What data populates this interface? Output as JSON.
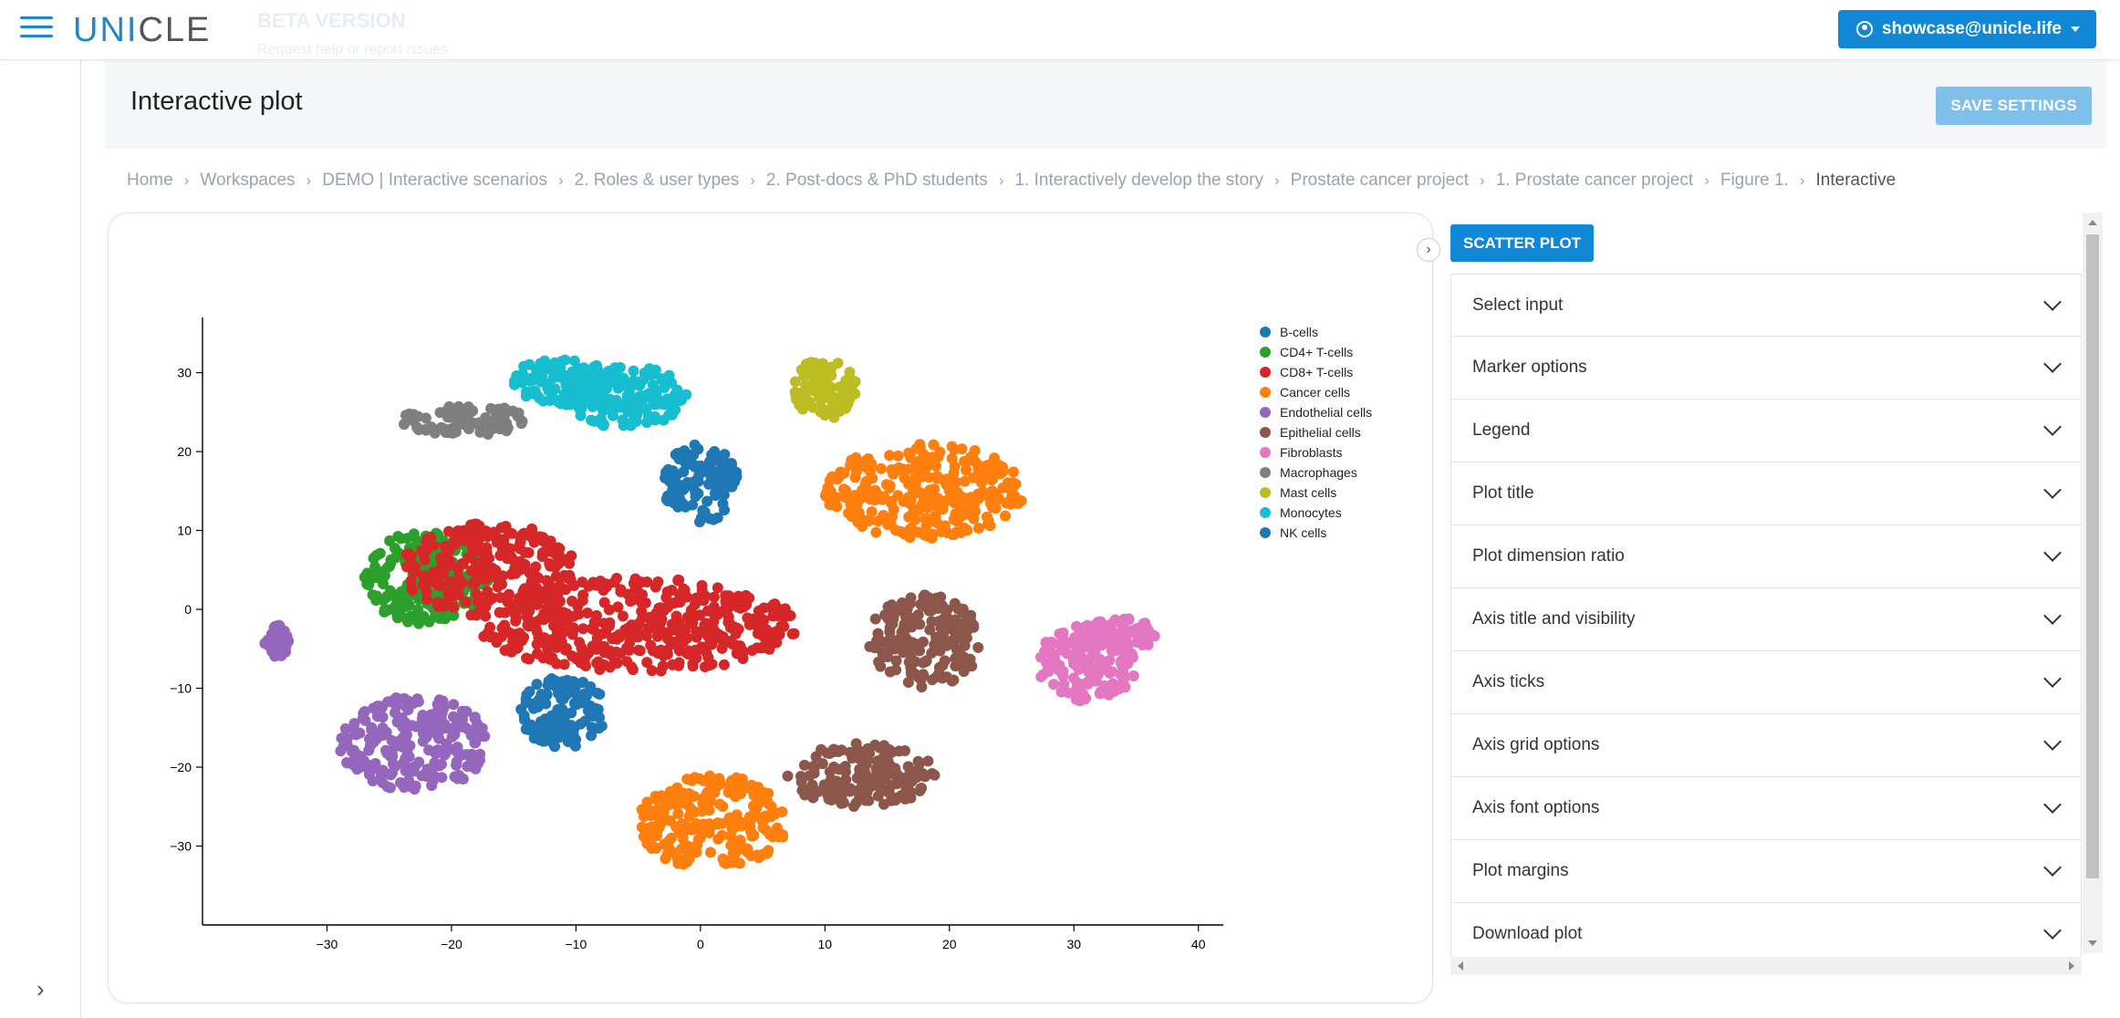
{
  "header": {
    "logo_primary": "UNI",
    "logo_secondary": "CLE",
    "beta_title": "BETA VERSION",
    "beta_subtitle": "Request help or report issues",
    "user_label": "showcase@unicle.life",
    "icons": {
      "menu": "hamburger-icon",
      "user": "user-circle-icon",
      "caret": "caret-down-icon"
    }
  },
  "page": {
    "title": "Interactive plot",
    "save_label": "SAVE SETTINGS"
  },
  "breadcrumb": [
    "Home",
    "Workspaces",
    "DEMO | Interactive scenarios",
    "2. Roles & user types",
    "2. Post-docs & PhD students",
    "1. Interactively develop the story",
    "Prostate cancer project",
    "1. Prostate cancer project",
    "Figure 1.",
    "Interactive"
  ],
  "panel": {
    "plot_type_label": "SCATTER PLOT",
    "sections": [
      "Select input",
      "Marker options",
      "Legend",
      "Plot title",
      "Plot dimension ratio",
      "Axis title and visibility",
      "Axis ticks",
      "Axis grid options",
      "Axis font options",
      "Plot margins",
      "Download plot"
    ]
  },
  "chart_data": {
    "type": "scatter",
    "title": "",
    "xlabel": "",
    "ylabel": "",
    "xlim": [
      -40,
      42
    ],
    "ylim": [
      -40,
      37
    ],
    "x_ticks": [
      -30,
      -20,
      -10,
      0,
      10,
      20,
      30,
      40
    ],
    "y_ticks": [
      -30,
      -20,
      -10,
      0,
      10,
      20,
      30
    ],
    "grid": false,
    "legend_position": "top-right",
    "series": [
      {
        "name": "B-cells",
        "color": "#1f77b4",
        "clusters": [
          {
            "cx": -11,
            "cy": -13,
            "rx": 3.5,
            "ry": 4.5
          }
        ]
      },
      {
        "name": "CD4+ T-cells",
        "color": "#2ca02c",
        "clusters": [
          {
            "cx": -22,
            "cy": 4,
            "rx": 5,
            "ry": 6
          }
        ]
      },
      {
        "name": "CD8+ T-cells",
        "color": "#d62728",
        "clusters": [
          {
            "cx": -5,
            "cy": -2,
            "rx": 13,
            "ry": 6
          },
          {
            "cx": -17,
            "cy": 5,
            "rx": 7,
            "ry": 6
          }
        ]
      },
      {
        "name": "Cancer cells",
        "color": "#ff7f0e",
        "clusters": [
          {
            "cx": 18,
            "cy": 15,
            "rx": 8,
            "ry": 6
          },
          {
            "cx": 1,
            "cy": -27,
            "rx": 6,
            "ry": 6
          }
        ]
      },
      {
        "name": "Endothelial cells",
        "color": "#9467bd",
        "clusters": [
          {
            "cx": -23,
            "cy": -17,
            "rx": 6,
            "ry": 6
          },
          {
            "cx": -34,
            "cy": -4,
            "rx": 1,
            "ry": 2
          }
        ]
      },
      {
        "name": "Epithelial cells",
        "color": "#8c564b",
        "clusters": [
          {
            "cx": 18,
            "cy": -4,
            "rx": 4.5,
            "ry": 6
          },
          {
            "cx": 13,
            "cy": -21,
            "rx": 6,
            "ry": 4
          }
        ]
      },
      {
        "name": "Fibroblasts",
        "color": "#e377c2",
        "clusters": [
          {
            "cx": 31,
            "cy": -7,
            "rx": 4,
            "ry": 5
          },
          {
            "cx": 34,
            "cy": -3,
            "rx": 3,
            "ry": 2
          }
        ]
      },
      {
        "name": "Macrophages",
        "color": "#7f7f7f",
        "clusters": [
          {
            "cx": -19,
            "cy": 24,
            "rx": 5,
            "ry": 2
          }
        ]
      },
      {
        "name": "Mast cells",
        "color": "#bcbd22",
        "clusters": [
          {
            "cx": 10,
            "cy": 28,
            "rx": 2.5,
            "ry": 4
          }
        ]
      },
      {
        "name": "Monocytes",
        "color": "#17becf",
        "clusters": [
          {
            "cx": -11,
            "cy": 29,
            "rx": 4,
            "ry": 3
          },
          {
            "cx": -6,
            "cy": 27,
            "rx": 5,
            "ry": 4
          }
        ]
      },
      {
        "name": "NK cells",
        "color": "#1f77b4",
        "clusters": [
          {
            "cx": 0,
            "cy": 16,
            "rx": 3,
            "ry": 5
          }
        ]
      }
    ]
  }
}
